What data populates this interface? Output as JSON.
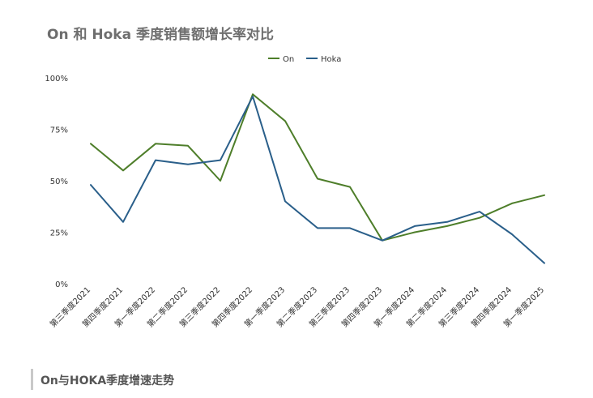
{
  "chart_data": {
    "type": "line",
    "title": "On 和 Hoka 季度销售额增长率对比",
    "categories": [
      "第三季度2021",
      "第四季度2021",
      "第一季度2022",
      "第二季度2022",
      "第三季度2022",
      "第四季度2022",
      "第一季度2023",
      "第二季度2023",
      "第三季度2023",
      "第四季度2023",
      "第一季度2024",
      "第二季度2024",
      "第三季度2024",
      "第四季度2024",
      "第一季度2025"
    ],
    "series": [
      {
        "name": "On",
        "color": "#4e7e2a",
        "values": [
          68,
          55,
          68,
          67,
          50,
          92,
          79,
          51,
          47,
          21,
          25,
          28,
          32,
          39,
          43
        ]
      },
      {
        "name": "Hoka",
        "color": "#2a5f8a",
        "values": [
          48,
          30,
          60,
          58,
          60,
          91,
          40,
          27,
          27,
          21,
          28,
          30,
          35,
          24,
          10
        ]
      }
    ],
    "ylim": [
      0,
      100
    ],
    "yticks": [
      "0%",
      "25%",
      "50%",
      "75%",
      "100%"
    ],
    "ytick_values": [
      0,
      25,
      50,
      75,
      100
    ],
    "legend_position": "top-center",
    "grid": false
  },
  "caption": "On与HOKA季度增速走势"
}
